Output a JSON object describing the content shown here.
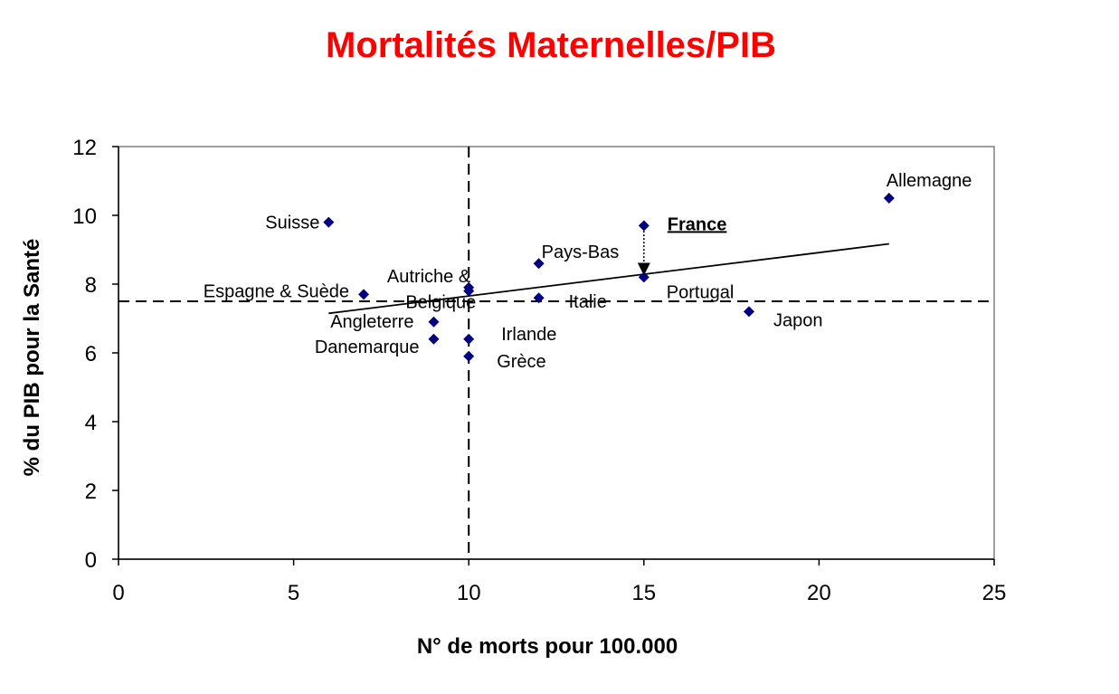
{
  "chart_data": {
    "type": "scatter",
    "title": "Mortalités Maternelles/PIB",
    "xlabel": "N° de morts pour 100.000",
    "ylabel": "% du PIB pour la Santé",
    "xlim": [
      0,
      25
    ],
    "ylim": [
      0,
      12
    ],
    "xticks": [
      "0",
      "5",
      "10",
      "15",
      "20",
      "25"
    ],
    "yticks": [
      "0",
      "2",
      "4",
      "6",
      "8",
      "10",
      "12"
    ],
    "grid": false,
    "marker_color": "#000080",
    "points": [
      {
        "label": "Suisse",
        "x": 6,
        "y": 9.8
      },
      {
        "label": "Espagne & Suède",
        "x": 7,
        "y": 7.7
      },
      {
        "label": "Angleterre",
        "x": 9,
        "y": 6.9
      },
      {
        "label": "Danemarque",
        "x": 9,
        "y": 6.4
      },
      {
        "label": "Autriche &",
        "x": 10,
        "y": 7.9
      },
      {
        "label": "Belgique",
        "x": 10,
        "y": 7.8
      },
      {
        "label": "Irlande",
        "x": 10,
        "y": 6.4
      },
      {
        "label": "Grèce",
        "x": 10,
        "y": 5.9
      },
      {
        "label": "Pays-Bas",
        "x": 12,
        "y": 8.6
      },
      {
        "label": "Italie",
        "x": 12,
        "y": 7.6
      },
      {
        "label": "France",
        "x": 15,
        "y": 9.7,
        "emphasis": true
      },
      {
        "label": "Portugal",
        "x": 15,
        "y": 8.2
      },
      {
        "label": "Japon",
        "x": 18,
        "y": 7.2
      },
      {
        "label": "Allemagne",
        "x": 22,
        "y": 10.5
      }
    ],
    "trendline": {
      "x": [
        6,
        22
      ],
      "y": [
        7.15,
        9.17
      ]
    },
    "reference_lines": {
      "vertical_x": 10,
      "horizontal_y": 7.5
    },
    "annotation_arrow": {
      "x": 15,
      "y_from": 9.55,
      "y_to": 8.25
    }
  }
}
